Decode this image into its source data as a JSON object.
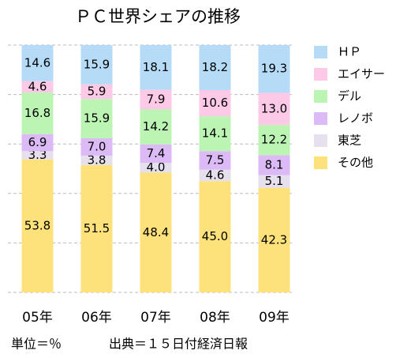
{
  "chart_data": {
    "type": "stacked_bar",
    "title": "ＰＣ世界シェアの推移",
    "categories": [
      "05年",
      "06年",
      "07年",
      "08年",
      "09年"
    ],
    "series": [
      {
        "name": "その他",
        "color": "#fde27c",
        "values": [
          53.8,
          51.5,
          48.4,
          45.0,
          42.3
        ],
        "value_labels": [
          "53.8",
          "51.5",
          "48.4",
          "45.0",
          "42.3"
        ]
      },
      {
        "name": "東芝",
        "color": "#e6e0ee",
        "values": [
          3.3,
          3.8,
          4.0,
          4.6,
          5.1
        ],
        "value_labels": [
          "3.3",
          "3.8",
          "4.0",
          "4.6",
          "5.1"
        ]
      },
      {
        "name": "レノボ",
        "color": "#dcbaf5",
        "values": [
          6.9,
          7.0,
          7.4,
          7.5,
          8.1
        ],
        "value_labels": [
          "6.9",
          "7.0",
          "7.4",
          "7.5",
          "8.1"
        ]
      },
      {
        "name": "デル",
        "color": "#bcf5b3",
        "values": [
          16.8,
          15.9,
          14.2,
          14.1,
          12.2
        ],
        "value_labels": [
          "16.8",
          "15.9",
          "14.2",
          "14.1",
          "12.2"
        ]
      },
      {
        "name": "エイサー",
        "color": "#fcc9e6",
        "values": [
          4.6,
          5.9,
          7.9,
          10.6,
          13.0
        ],
        "value_labels": [
          "4.6",
          "5.9",
          "7.9",
          "10.6",
          "13.0"
        ]
      },
      {
        "name": "ＨＰ",
        "color": "#b5dbf7",
        "values": [
          14.6,
          15.9,
          18.1,
          18.2,
          19.3
        ],
        "value_labels": [
          "14.6",
          "15.9",
          "18.1",
          "18.2",
          "19.3"
        ]
      }
    ],
    "ylim": [
      0,
      100
    ],
    "yticks": [
      0,
      20,
      40,
      60,
      80,
      100
    ],
    "grid": true,
    "notes": [
      "単位＝％",
      "出典＝１５日付経済日報"
    ]
  }
}
